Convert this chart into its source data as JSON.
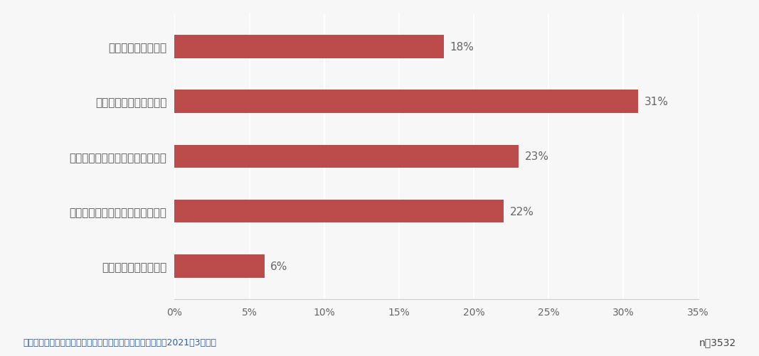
{
  "categories": [
    "できれば行きたくない",
    "すぐに行かなくてもなんとかなる",
    "皆が行くようになったら行きたい",
    "できるだけ早く行きたい",
    "すぐにでも行きたい"
  ],
  "values": [
    6,
    22,
    23,
    31,
    18
  ],
  "bar_color": "#bc4b4b",
  "value_labels": [
    "6%",
    "22%",
    "23%",
    "31%",
    "18%"
  ],
  "xlim": [
    0,
    35
  ],
  "xticks": [
    0,
    5,
    10,
    15,
    20,
    25,
    30,
    35
  ],
  "xtick_labels": [
    "0%",
    "5%",
    "10%",
    "15%",
    "20%",
    "25%",
    "30%",
    "35%"
  ],
  "background_color": "#f7f7f7",
  "grid_color": "#ffffff",
  "label_fontsize": 11,
  "tick_fontsize": 10,
  "value_fontsize": 11,
  "footer_left": "（株）テレコムスクェア『海外への渡航に対する意識調査』2021年3月実施",
  "footer_right": "n＝3532",
  "footer_color_left": "#2a5aad",
  "footer_color_right": "#444444",
  "bar_height": 0.42
}
